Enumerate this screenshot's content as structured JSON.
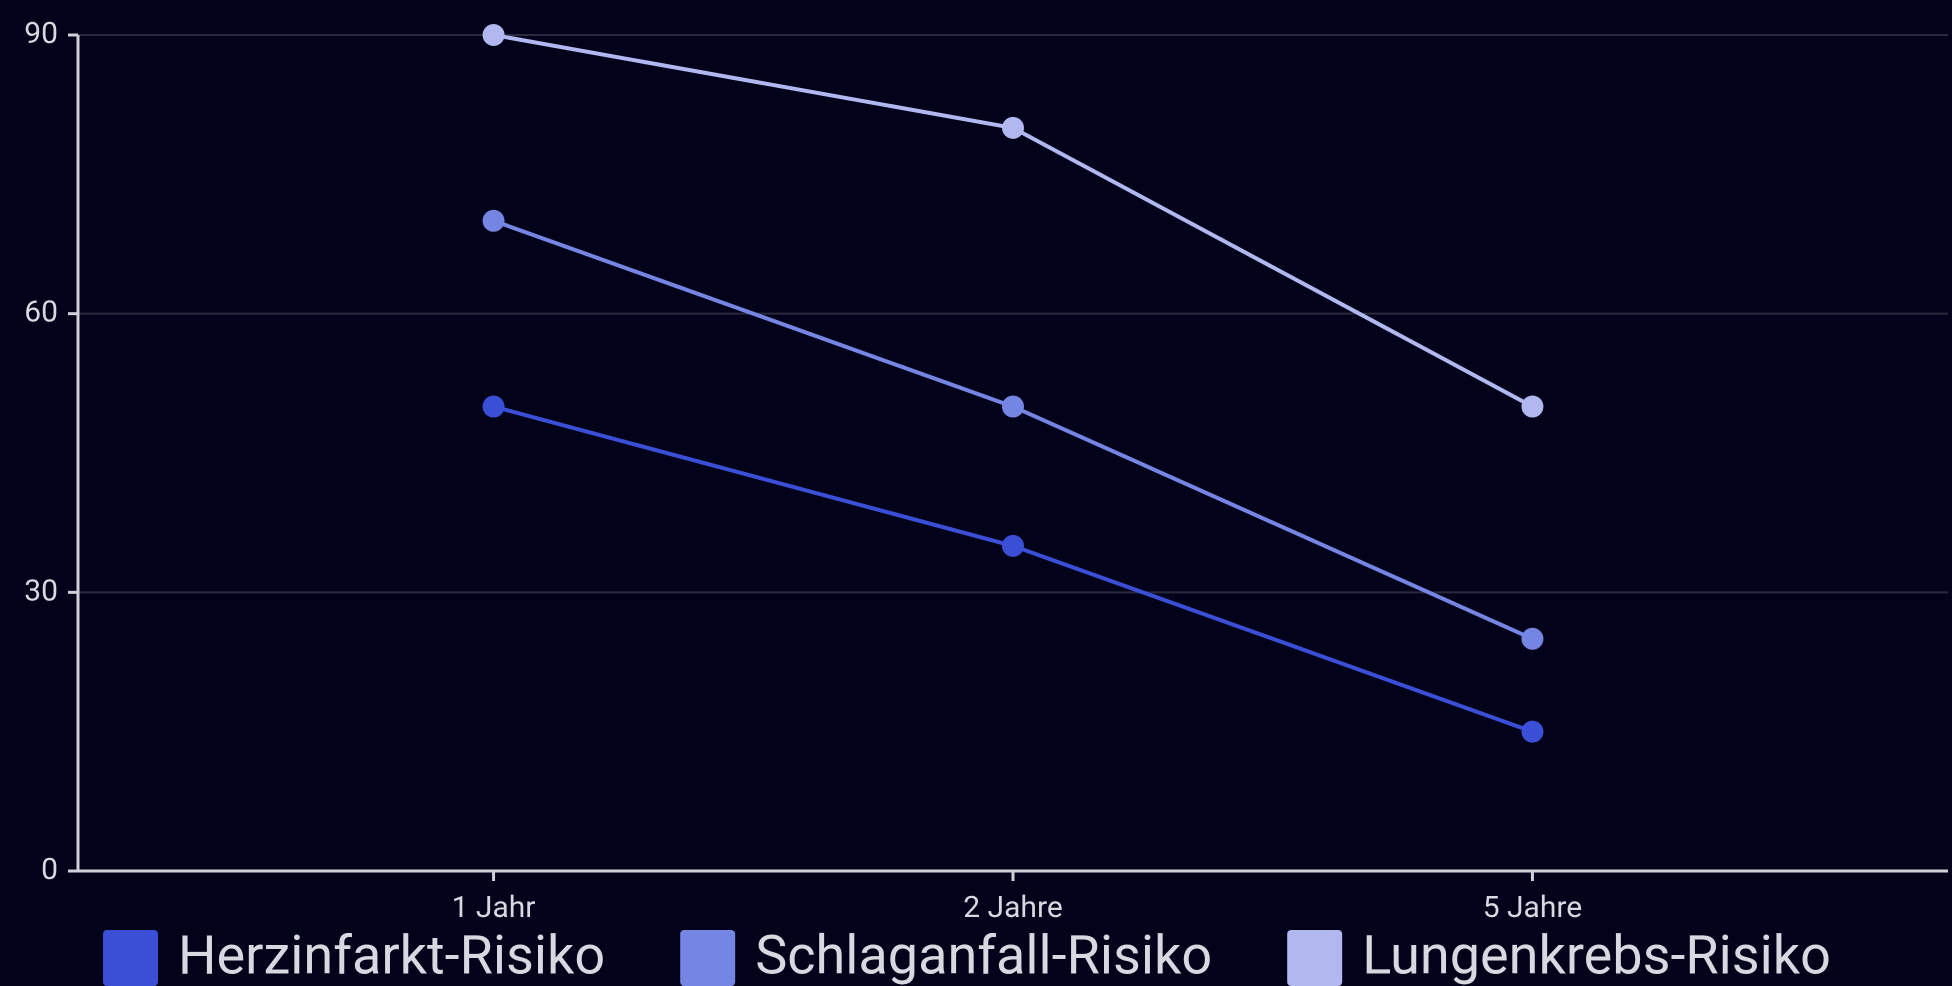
{
  "chart_data": {
    "type": "line",
    "categories": [
      "1 Jahr",
      "2 Jahre",
      "5 Jahre"
    ],
    "series": [
      {
        "name": "Herzinfarkt-Risiko",
        "color": "#3a4fd6",
        "values": [
          50,
          35,
          15
        ]
      },
      {
        "name": "Schlaganfall-Risiko",
        "color": "#7585e3",
        "values": [
          70,
          50,
          25
        ]
      },
      {
        "name": "Lungenkrebs-Risiko",
        "color": "#b0b8ef",
        "values": [
          90,
          80,
          50
        ]
      }
    ],
    "ylim": [
      0,
      90
    ],
    "yticks": [
      0,
      30,
      60,
      90
    ],
    "grid": true,
    "legend": "bottom"
  }
}
